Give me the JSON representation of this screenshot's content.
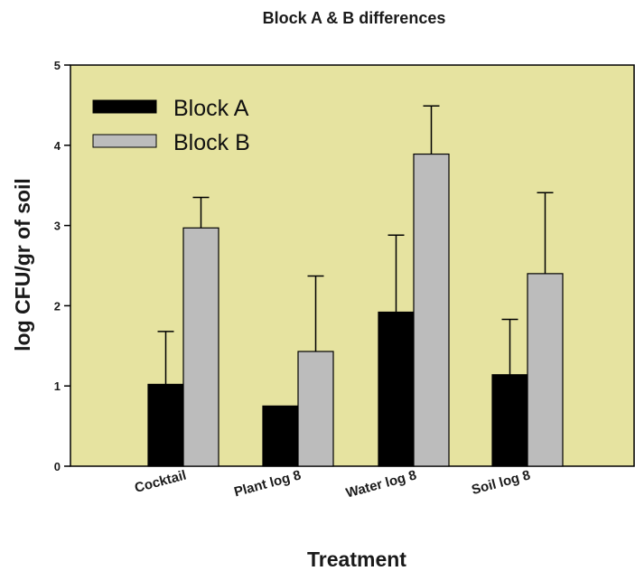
{
  "chart_data": {
    "type": "bar",
    "title": "Block A & B differences",
    "xlabel": "Treatment",
    "ylabel": "log CFU/gr of soil",
    "ylim": [
      0,
      5
    ],
    "yticks": [
      "0",
      "1",
      "2",
      "3",
      "4",
      "5"
    ],
    "categories": [
      "Cocktail",
      "Plant log 8",
      "Water log 8",
      "Soil log 8"
    ],
    "series": [
      {
        "name": "Block A",
        "values": [
          1.02,
          0.75,
          1.92,
          1.14
        ],
        "error": [
          0.66,
          0,
          0.96,
          0.69
        ],
        "color": "#000000"
      },
      {
        "name": "Block B",
        "values": [
          2.97,
          1.43,
          3.89,
          2.4
        ],
        "error": [
          0.38,
          0.94,
          0.6,
          1.01
        ],
        "color": "#bcbcbc"
      }
    ],
    "legend_position": "top-left",
    "plot_background": "#e6e3a0",
    "grid": false
  }
}
